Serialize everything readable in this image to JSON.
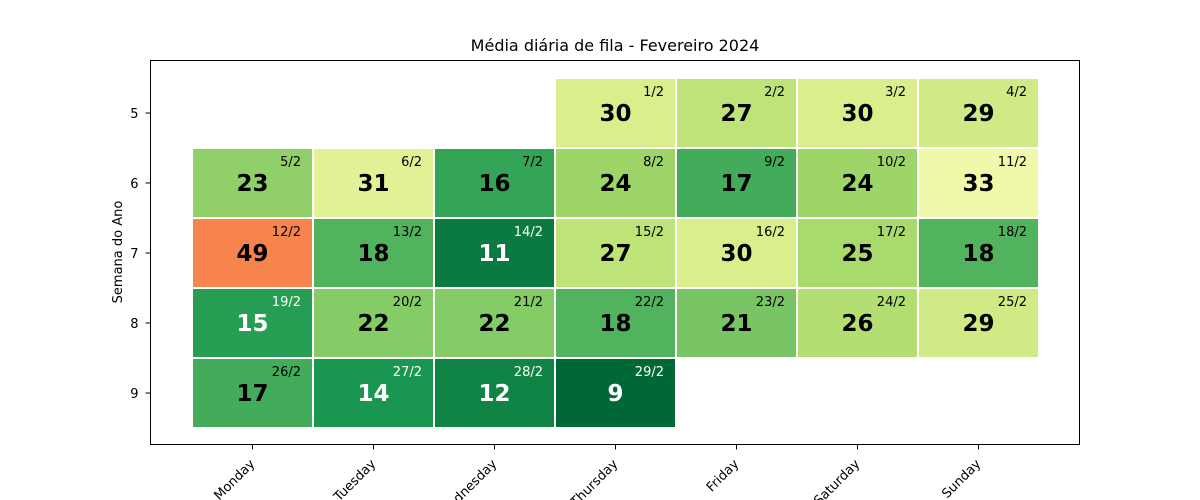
{
  "chart_data": {
    "type": "heatmap",
    "title": "Média diária de fila - Fevereiro 2024",
    "ylabel": "Semana do Ano",
    "xlabel": "",
    "x_categories": [
      "Monday",
      "Tuesday",
      "Wednesday",
      "Thursday",
      "Friday",
      "Saturday",
      "Sunday"
    ],
    "y_categories": [
      5,
      6,
      7,
      8,
      9
    ],
    "colormap": "RdYlGn_r",
    "grid": false,
    "cells": [
      {
        "week": 5,
        "weekday": "Thursday",
        "date": "1/2",
        "value": 30
      },
      {
        "week": 5,
        "weekday": "Friday",
        "date": "2/2",
        "value": 27
      },
      {
        "week": 5,
        "weekday": "Saturday",
        "date": "3/2",
        "value": 30
      },
      {
        "week": 5,
        "weekday": "Sunday",
        "date": "4/2",
        "value": 29
      },
      {
        "week": 6,
        "weekday": "Monday",
        "date": "5/2",
        "value": 23
      },
      {
        "week": 6,
        "weekday": "Tuesday",
        "date": "6/2",
        "value": 31
      },
      {
        "week": 6,
        "weekday": "Wednesday",
        "date": "7/2",
        "value": 16
      },
      {
        "week": 6,
        "weekday": "Thursday",
        "date": "8/2",
        "value": 24
      },
      {
        "week": 6,
        "weekday": "Friday",
        "date": "9/2",
        "value": 17
      },
      {
        "week": 6,
        "weekday": "Saturday",
        "date": "10/2",
        "value": 24
      },
      {
        "week": 6,
        "weekday": "Sunday",
        "date": "11/2",
        "value": 33
      },
      {
        "week": 7,
        "weekday": "Monday",
        "date": "12/2",
        "value": 49
      },
      {
        "week": 7,
        "weekday": "Tuesday",
        "date": "13/2",
        "value": 18
      },
      {
        "week": 7,
        "weekday": "Wednesday",
        "date": "14/2",
        "value": 11
      },
      {
        "week": 7,
        "weekday": "Thursday",
        "date": "15/2",
        "value": 27
      },
      {
        "week": 7,
        "weekday": "Friday",
        "date": "16/2",
        "value": 30
      },
      {
        "week": 7,
        "weekday": "Saturday",
        "date": "17/2",
        "value": 25
      },
      {
        "week": 7,
        "weekday": "Sunday",
        "date": "18/2",
        "value": 18
      },
      {
        "week": 8,
        "weekday": "Monday",
        "date": "19/2",
        "value": 15
      },
      {
        "week": 8,
        "weekday": "Tuesday",
        "date": "20/2",
        "value": 22
      },
      {
        "week": 8,
        "weekday": "Wednesday",
        "date": "21/2",
        "value": 22
      },
      {
        "week": 8,
        "weekday": "Thursday",
        "date": "22/2",
        "value": 18
      },
      {
        "week": 8,
        "weekday": "Friday",
        "date": "23/2",
        "value": 21
      },
      {
        "week": 8,
        "weekday": "Saturday",
        "date": "24/2",
        "value": 26
      },
      {
        "week": 8,
        "weekday": "Sunday",
        "date": "25/2",
        "value": 29
      },
      {
        "week": 9,
        "weekday": "Monday",
        "date": "26/2",
        "value": 17
      },
      {
        "week": 9,
        "weekday": "Tuesday",
        "date": "27/2",
        "value": 14
      },
      {
        "week": 9,
        "weekday": "Wednesday",
        "date": "28/2",
        "value": 12
      },
      {
        "week": 9,
        "weekday": "Thursday",
        "date": "29/2",
        "value": 9
      }
    ]
  }
}
